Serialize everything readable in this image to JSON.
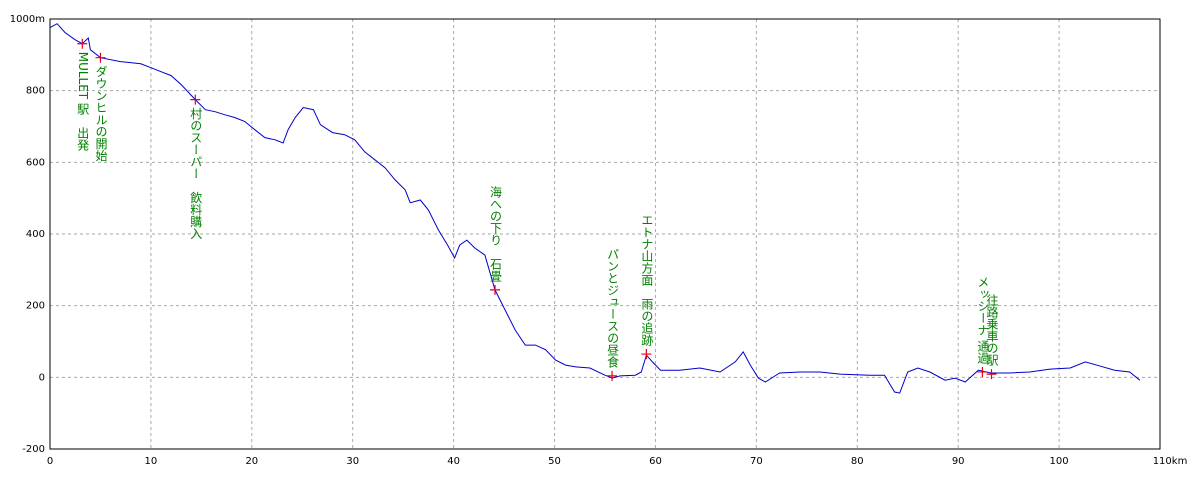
{
  "chart_data": {
    "type": "line",
    "color": "#0000cc",
    "marker_color": "#e00020",
    "annotation_color": "#008000",
    "grid": true,
    "xlim": [
      0,
      110
    ],
    "xticks": [
      0,
      10,
      20,
      30,
      40,
      50,
      60,
      70,
      80,
      90,
      100,
      {
        "value": 110,
        "label": "110km"
      }
    ],
    "ylim": [
      -200,
      1000
    ],
    "yticks": [
      -200,
      0,
      200,
      400,
      600,
      800,
      {
        "value": 1000,
        "label": "1000m"
      }
    ],
    "x": [
      0,
      0.7,
      1.5,
      2.5,
      3.2,
      3.8,
      4,
      5,
      7,
      9,
      10,
      11,
      12,
      13,
      14.4,
      15.4,
      16.4,
      17.3,
      18.3,
      19.3,
      20.3,
      21.3,
      22.3,
      23.1,
      23.6,
      24.3,
      25.1,
      26.1,
      26.8,
      28,
      29.2,
      30.2,
      31.2,
      32.2,
      33.2,
      34.2,
      35.2,
      35.7,
      36.7,
      37.5,
      38.5,
      39.4,
      40.1,
      40.6,
      41.3,
      42.1,
      43.1,
      44.1,
      45.1,
      46.1,
      47.1,
      48.1,
      49.1,
      50.1,
      51.1,
      52.1,
      53.5,
      55,
      55.7,
      56.5,
      58,
      58.6,
      59.1,
      59.7,
      60.5,
      62.4,
      64.4,
      66.4,
      67.9,
      68.7,
      69.4,
      70.2,
      70.9,
      72.3,
      74.3,
      76.3,
      78.3,
      81.2,
      82.7,
      83.7,
      84.2,
      85,
      86,
      87.2,
      88.7,
      89.7,
      90.7,
      92,
      93.2,
      95.1,
      97.1,
      99.1,
      101.1,
      102.6,
      104.1,
      105.5,
      107,
      108
    ],
    "values": [
      976,
      987,
      962,
      942,
      931,
      947,
      914,
      892,
      881,
      875,
      864,
      853,
      842,
      817,
      775,
      747,
      741,
      733,
      725,
      714,
      691,
      669,
      663,
      654,
      691,
      725,
      753,
      747,
      705,
      683,
      677,
      663,
      629,
      607,
      585,
      551,
      523,
      487,
      495,
      467,
      411,
      369,
      333,
      369,
      383,
      361,
      341,
      244,
      188,
      132,
      90,
      90,
      77,
      48,
      34,
      29,
      26,
      6,
      -2,
      4,
      6,
      15,
      62,
      43,
      20,
      20,
      26,
      15,
      43,
      71,
      34,
      -2,
      -13,
      12,
      15,
      15,
      9,
      6,
      6,
      -41,
      -44,
      15,
      26,
      15,
      -8,
      -2,
      -13,
      20,
      12,
      12,
      15,
      23,
      26,
      43,
      31,
      20,
      15,
      -8
    ],
    "annotations": [
      {
        "text": "MULLET 駅　出発",
        "x": 3.2,
        "y": 931
      },
      {
        "text": "ダウンヒルの開始",
        "x": 5,
        "y": 892
      },
      {
        "text": "村のスーパー　飲料購入",
        "x": 14.4,
        "y": 775
      },
      {
        "text": "海への下り　石畳",
        "x": 44.1,
        "y": 244
      },
      {
        "text": "パンとジュースの昼食",
        "x": 55.7,
        "y": 4
      },
      {
        "text": "エトナ山方面　雨の追跡",
        "x": 59.1,
        "y": 65
      },
      {
        "text": "メッシーナ 通過",
        "x": 92.4,
        "y": 15
      },
      {
        "text": "往路乗車の駅",
        "x": 93.3,
        "y": 9
      }
    ]
  }
}
